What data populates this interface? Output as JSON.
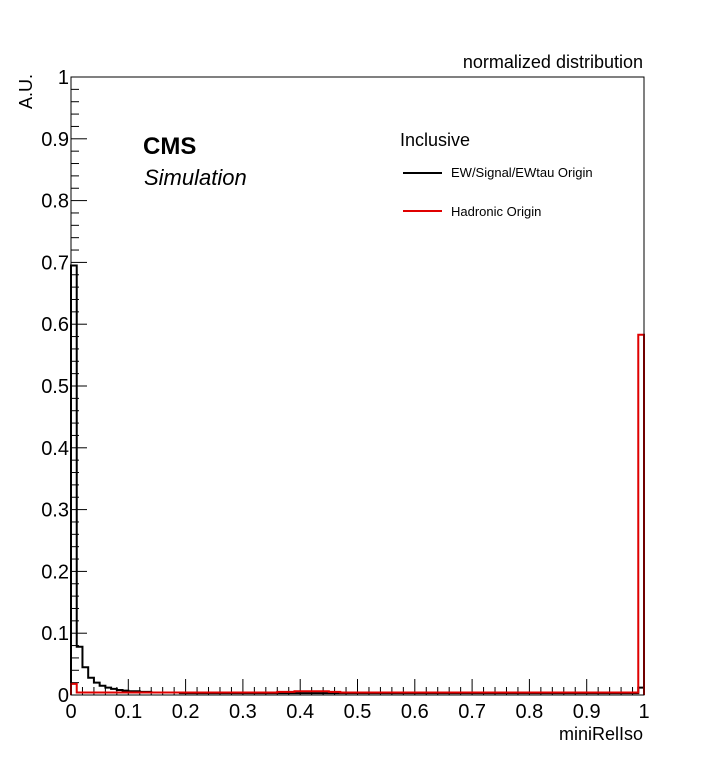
{
  "chart_data": {
    "type": "line",
    "title": "normalized distribution",
    "xlabel": "miniRelIso",
    "ylabel": "A.U.",
    "xlim": [
      0,
      1
    ],
    "ylim": [
      0,
      1
    ],
    "x_ticks": [
      "0",
      "0.1",
      "0.2",
      "0.3",
      "0.4",
      "0.5",
      "0.6",
      "0.7",
      "0.8",
      "0.9",
      "1"
    ],
    "y_ticks": [
      "0",
      "0.1",
      "0.2",
      "0.3",
      "0.4",
      "0.5",
      "0.6",
      "0.7",
      "0.8",
      "0.9",
      "1"
    ],
    "grid": false,
    "annotations": {
      "experiment": "CMS",
      "status": "Simulation",
      "legend_header": "Inclusive"
    },
    "legend_placement": "top-right",
    "series": [
      {
        "name": "EW/Signal/EWtau Origin",
        "color": "#000000",
        "bin_width": 0.01,
        "values": [
          0.695,
          0.078,
          0.045,
          0.028,
          0.02,
          0.015,
          0.012,
          0.01,
          0.008,
          0.007,
          0.006,
          0.006,
          0.005,
          0.005,
          0.004,
          0.004,
          0.004,
          0.004,
          0.004,
          0.003,
          0.003,
          0.003,
          0.003,
          0.003,
          0.003,
          0.003,
          0.003,
          0.003,
          0.003,
          0.003,
          0.003,
          0.003,
          0.003,
          0.003,
          0.003,
          0.003,
          0.003,
          0.003,
          0.003,
          0.003,
          0.003,
          0.003,
          0.003,
          0.003,
          0.003,
          0.003,
          0.003,
          0.003,
          0.003,
          0.003,
          0.003,
          0.003,
          0.003,
          0.003,
          0.003,
          0.003,
          0.003,
          0.003,
          0.003,
          0.003,
          0.003,
          0.003,
          0.003,
          0.003,
          0.003,
          0.003,
          0.003,
          0.003,
          0.003,
          0.003,
          0.003,
          0.003,
          0.003,
          0.003,
          0.003,
          0.003,
          0.003,
          0.003,
          0.003,
          0.003,
          0.003,
          0.003,
          0.003,
          0.003,
          0.003,
          0.003,
          0.003,
          0.003,
          0.003,
          0.003,
          0.003,
          0.003,
          0.003,
          0.003,
          0.003,
          0.003,
          0.003,
          0.003,
          0.003,
          0.012
        ]
      },
      {
        "name": "Hadronic Origin",
        "color": "#e00000",
        "bin_width": 0.01,
        "values": [
          0.018,
          0.004,
          0.004,
          0.004,
          0.004,
          0.004,
          0.004,
          0.004,
          0.004,
          0.004,
          0.004,
          0.004,
          0.004,
          0.004,
          0.004,
          0.004,
          0.004,
          0.004,
          0.004,
          0.004,
          0.004,
          0.004,
          0.004,
          0.004,
          0.004,
          0.004,
          0.004,
          0.004,
          0.004,
          0.004,
          0.004,
          0.004,
          0.004,
          0.004,
          0.004,
          0.004,
          0.005,
          0.005,
          0.005,
          0.006,
          0.006,
          0.006,
          0.006,
          0.006,
          0.006,
          0.005,
          0.005,
          0.004,
          0.004,
          0.004,
          0.004,
          0.004,
          0.004,
          0.004,
          0.004,
          0.004,
          0.004,
          0.004,
          0.004,
          0.004,
          0.004,
          0.004,
          0.004,
          0.004,
          0.004,
          0.004,
          0.004,
          0.004,
          0.004,
          0.004,
          0.004,
          0.004,
          0.004,
          0.004,
          0.004,
          0.004,
          0.004,
          0.004,
          0.004,
          0.004,
          0.004,
          0.004,
          0.004,
          0.004,
          0.004,
          0.004,
          0.004,
          0.004,
          0.004,
          0.004,
          0.004,
          0.004,
          0.004,
          0.004,
          0.004,
          0.004,
          0.004,
          0.004,
          0.004,
          0.583
        ]
      }
    ]
  }
}
